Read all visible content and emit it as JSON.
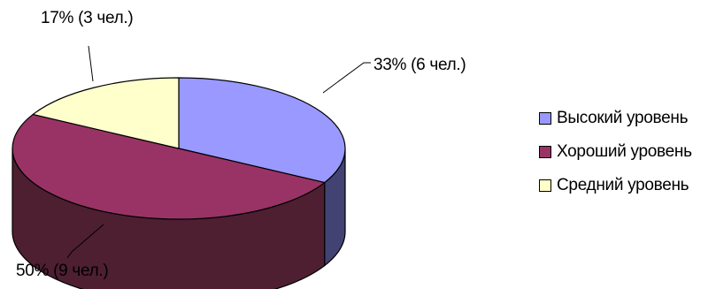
{
  "chart_data": {
    "type": "pie",
    "style": "3d",
    "slices": [
      {
        "category": "Высокий уровень",
        "value": 33,
        "count": 6,
        "label": "33% (6 чел.)",
        "top_color": "#9999ff",
        "side_color": "#434373"
      },
      {
        "category": "Хороший уровень",
        "value": 50,
        "count": 9,
        "label": "50% (9 чел.)",
        "top_color": "#993366",
        "side_color": "#4d1f31"
      },
      {
        "category": "Средний уровень",
        "value": 17,
        "count": 3,
        "label": "17% (3 чел.)",
        "top_color": "#ffffcc",
        "side_color": "#80805f"
      }
    ],
    "legend_position": "right"
  }
}
